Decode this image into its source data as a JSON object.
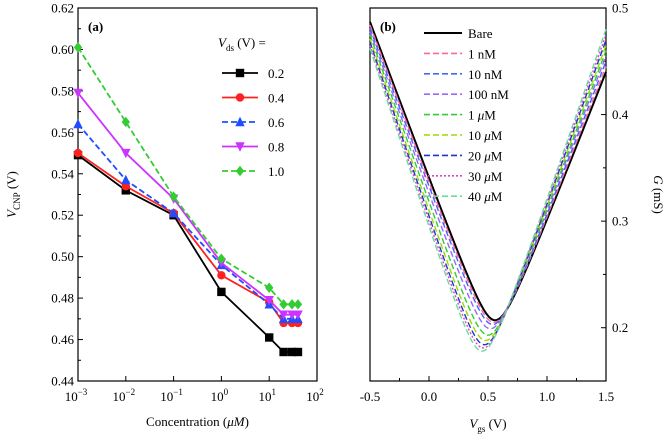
{
  "chart_data": [
    {
      "type": "line",
      "panel_label": "(a)",
      "xlabel_text": "Concentration (",
      "xlabel_unit": "μM",
      "xlabel_close": ")",
      "ylabel_text": "V",
      "ylabel_sub": "CNP",
      "ylabel_unit": "(V)",
      "xscale": "log",
      "xlim": [
        0.001,
        100
      ],
      "ylim": [
        0.44,
        0.62
      ],
      "xticks": [
        {
          "v": 0.001,
          "base": "10",
          "exp": "−3"
        },
        {
          "v": 0.01,
          "base": "10",
          "exp": "−2"
        },
        {
          "v": 0.1,
          "base": "10",
          "exp": "−1"
        },
        {
          "v": 1,
          "base": "10",
          "exp": "0"
        },
        {
          "v": 10,
          "base": "10",
          "exp": "1"
        },
        {
          "v": 100,
          "base": "10",
          "exp": "2"
        }
      ],
      "yticks": [
        "0.44",
        "0.46",
        "0.48",
        "0.50",
        "0.52",
        "0.54",
        "0.56",
        "0.58",
        "0.60",
        "0.62"
      ],
      "legend_title_text": "V",
      "legend_title_sub": "ds",
      "legend_title_unit": "(V) =",
      "legend_position": "top-right",
      "x": [
        0.001,
        0.01,
        0.1,
        1,
        10,
        20,
        30,
        40
      ],
      "series": [
        {
          "name": "0.2",
          "color": "#000000",
          "marker": "square",
          "dash": "solid",
          "values": [
            0.549,
            0.532,
            0.52,
            0.483,
            0.461,
            0.454,
            0.454,
            0.454
          ]
        },
        {
          "name": "0.4",
          "color": "#ff2020",
          "marker": "circle",
          "dash": "solid",
          "values": [
            0.55,
            0.534,
            0.521,
            0.491,
            0.478,
            0.468,
            0.468,
            0.468
          ]
        },
        {
          "name": "0.6",
          "color": "#1f4dff",
          "marker": "triangle-up",
          "dash": "dashed",
          "values": [
            0.564,
            0.537,
            0.521,
            0.496,
            0.477,
            0.47,
            0.47,
            0.47
          ]
        },
        {
          "name": "0.8",
          "color": "#cc33ff",
          "marker": "triangle-down",
          "dash": "solid",
          "values": [
            0.579,
            0.55,
            0.528,
            0.497,
            0.479,
            0.472,
            0.472,
            0.472
          ]
        },
        {
          "name": "1.0",
          "color": "#33cc33",
          "marker": "diamond",
          "dash": "dashed",
          "values": [
            0.601,
            0.565,
            0.529,
            0.499,
            0.485,
            0.477,
            0.477,
            0.477
          ]
        }
      ]
    },
    {
      "type": "line",
      "panel_label": "(b)",
      "xlabel_text": "V",
      "xlabel_sub": "gs",
      "xlabel_unit": "(V)",
      "ylabel_text": "G",
      "ylabel_unit": "(mS)",
      "y_axis_side": "right",
      "xlim": [
        -0.5,
        1.5
      ],
      "ylim": [
        0.15,
        0.5
      ],
      "xticks": [
        "-0.5",
        "0.0",
        "0.5",
        "1.0",
        "1.5"
      ],
      "yticks": [
        "0.2",
        "0.3",
        "0.4",
        "0.5"
      ],
      "legend_position": "top-right",
      "series": [
        {
          "name": "Bare",
          "color": "#000000",
          "dash": "solid",
          "vmin": 0.56,
          "gmin": 0.207,
          "gleft": 0.487,
          "gright": 0.44
        },
        {
          "name": "1 nM",
          "color": "#ff6699",
          "dash": "dashed",
          "vmin": 0.55,
          "gmin": 0.205,
          "gleft": 0.484,
          "gright": 0.445
        },
        {
          "name": "10 nM",
          "color": "#4466ff",
          "dash": "dashed",
          "vmin": 0.54,
          "gmin": 0.203,
          "gleft": 0.481,
          "gright": 0.45
        },
        {
          "name": "100 nM",
          "color": "#9966ff",
          "dash": "dashed",
          "vmin": 0.52,
          "gmin": 0.199,
          "gleft": 0.478,
          "gright": 0.455
        },
        {
          "name": "1 μM",
          "color": "#33cc33",
          "dash": "dashed",
          "vmin": 0.5,
          "gmin": 0.193,
          "gleft": 0.475,
          "gright": 0.46
        },
        {
          "name": "10 μM",
          "color": "#99dd00",
          "dash": "dashed",
          "vmin": 0.48,
          "gmin": 0.188,
          "gleft": 0.471,
          "gright": 0.465
        },
        {
          "name": "20 μM",
          "color": "#2233cc",
          "dash": "dashed",
          "vmin": 0.47,
          "gmin": 0.184,
          "gleft": 0.468,
          "gright": 0.47
        },
        {
          "name": "30 μM",
          "color": "#dd44cc",
          "dash": "dotted",
          "vmin": 0.46,
          "gmin": 0.181,
          "gleft": 0.465,
          "gright": 0.475
        },
        {
          "name": "40 μM",
          "color": "#66dd99",
          "dash": "dashed",
          "vmin": 0.45,
          "gmin": 0.178,
          "gleft": 0.462,
          "gright": 0.48
        }
      ]
    }
  ]
}
